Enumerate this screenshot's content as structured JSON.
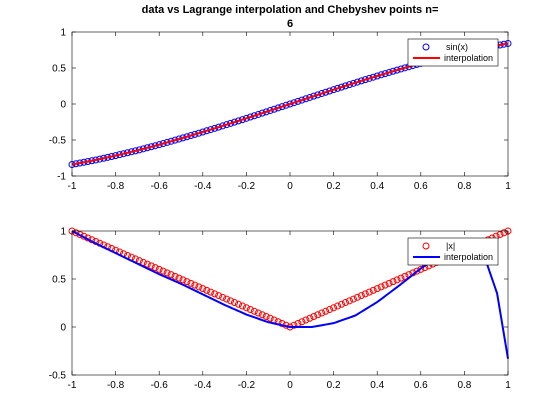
{
  "figure": {
    "title_line1": "data vs Lagrange interpolation and Chebyshev points n=",
    "title_line2": "6"
  },
  "chart_data": [
    {
      "type": "line",
      "xlim": [
        -1,
        1
      ],
      "ylim": [
        -1,
        1
      ],
      "x_ticks": [
        "-1",
        "-0.8",
        "-0.6",
        "-0.4",
        "-0.2",
        "0",
        "0.2",
        "0.4",
        "0.6",
        "0.8",
        "1"
      ],
      "y_ticks": [
        "1",
        "0.5",
        "0",
        "-0.5",
        "-1"
      ],
      "grid": false,
      "legend_position": "top-right",
      "series": [
        {
          "name": "sin(x)",
          "style": "markers",
          "marker": "circle",
          "color": "#0000ff",
          "x": [
            -1.0,
            -0.9,
            -0.8,
            -0.7,
            -0.6,
            -0.5,
            -0.4,
            -0.3,
            -0.2,
            -0.1,
            0.0,
            0.1,
            0.2,
            0.3,
            0.4,
            0.5,
            0.6,
            0.7,
            0.8,
            0.9,
            1.0
          ],
          "y": [
            -0.841,
            -0.783,
            -0.717,
            -0.644,
            -0.565,
            -0.479,
            -0.389,
            -0.296,
            -0.199,
            -0.1,
            0.0,
            0.1,
            0.199,
            0.296,
            0.389,
            0.479,
            0.565,
            0.644,
            0.717,
            0.783,
            0.841
          ]
        },
        {
          "name": "interpolation",
          "style": "line",
          "color": "#ff0000",
          "x": [
            -1.0,
            -0.9,
            -0.8,
            -0.7,
            -0.6,
            -0.5,
            -0.4,
            -0.3,
            -0.2,
            -0.1,
            0.0,
            0.1,
            0.2,
            0.3,
            0.4,
            0.5,
            0.6,
            0.7,
            0.8,
            0.9,
            1.0
          ],
          "y": [
            -0.841,
            -0.783,
            -0.717,
            -0.644,
            -0.565,
            -0.479,
            -0.389,
            -0.296,
            -0.199,
            -0.1,
            0.0,
            0.1,
            0.199,
            0.296,
            0.389,
            0.479,
            0.565,
            0.644,
            0.717,
            0.783,
            0.841
          ]
        }
      ]
    },
    {
      "type": "line",
      "xlim": [
        -1,
        1
      ],
      "ylim": [
        -0.5,
        1
      ],
      "x_ticks": [
        "-1",
        "-0.8",
        "-0.6",
        "-0.4",
        "-0.2",
        "0",
        "0.2",
        "0.4",
        "0.6",
        "0.8",
        "1"
      ],
      "y_ticks": [
        "1",
        "0.5",
        "0",
        "-0.5"
      ],
      "grid": false,
      "legend_position": "top-right",
      "series": [
        {
          "name": "|x|",
          "style": "markers",
          "marker": "circle",
          "color": "#ff0000",
          "x": [
            -1.0,
            -0.9,
            -0.8,
            -0.7,
            -0.6,
            -0.5,
            -0.4,
            -0.3,
            -0.2,
            -0.1,
            0.0,
            0.1,
            0.2,
            0.3,
            0.4,
            0.5,
            0.6,
            0.7,
            0.8,
            0.9,
            1.0
          ],
          "y": [
            1.0,
            0.9,
            0.8,
            0.7,
            0.6,
            0.5,
            0.4,
            0.3,
            0.2,
            0.1,
            0.0,
            0.1,
            0.2,
            0.3,
            0.4,
            0.5,
            0.6,
            0.7,
            0.8,
            0.9,
            1.0
          ]
        },
        {
          "name": "interpolation",
          "style": "line",
          "color": "#0000ff",
          "x": [
            -1.0,
            -0.9,
            -0.8,
            -0.7,
            -0.6,
            -0.5,
            -0.4,
            -0.3,
            -0.2,
            -0.1,
            0.0,
            0.1,
            0.2,
            0.3,
            0.4,
            0.5,
            0.6,
            0.7,
            0.8,
            0.9,
            0.95,
            1.0
          ],
          "y": [
            1.0,
            0.88,
            0.77,
            0.66,
            0.55,
            0.45,
            0.34,
            0.23,
            0.13,
            0.05,
            0.0,
            0.0,
            0.04,
            0.12,
            0.26,
            0.43,
            0.61,
            0.76,
            0.83,
            0.68,
            0.35,
            -0.33
          ]
        }
      ]
    }
  ]
}
